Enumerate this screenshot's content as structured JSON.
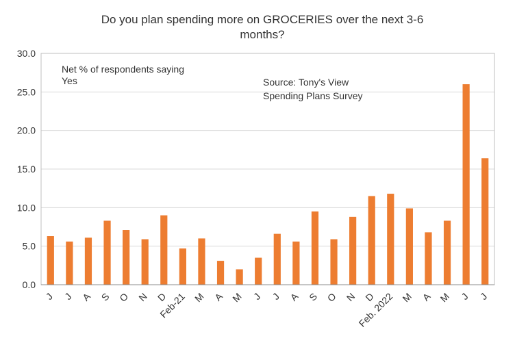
{
  "chart_data": {
    "type": "bar",
    "title_lines": [
      "Do you plan spending more on GROCERIES over the next 3-6",
      "months?"
    ],
    "annotation_lines": [
      "Net % of respondents saying",
      "Yes"
    ],
    "source_lines": [
      "Source: Tony's View",
      "Spending Plans Survey"
    ],
    "xlabel": "",
    "ylabel": "",
    "ylim": [
      0,
      30
    ],
    "yticks": [
      "0.0",
      "5.0",
      "10.0",
      "15.0",
      "20.0",
      "25.0",
      "30.0"
    ],
    "grid": true,
    "bar_color": "#ED7D31",
    "categories": [
      "J",
      "J",
      "A",
      "S",
      "O",
      "N",
      "D",
      "Feb-21",
      "M",
      "A",
      "M",
      "J",
      "J",
      "A",
      "S",
      "O",
      "N",
      "D",
      "Feb. 2022",
      "M",
      "A",
      "M",
      "J",
      "J"
    ],
    "values": [
      6.3,
      5.6,
      6.1,
      8.3,
      7.1,
      5.9,
      9.0,
      4.7,
      6.0,
      3.1,
      2.0,
      3.5,
      6.6,
      5.6,
      9.5,
      5.9,
      8.8,
      11.5,
      11.8,
      9.9,
      6.8,
      8.3,
      26.0,
      16.4
    ]
  }
}
